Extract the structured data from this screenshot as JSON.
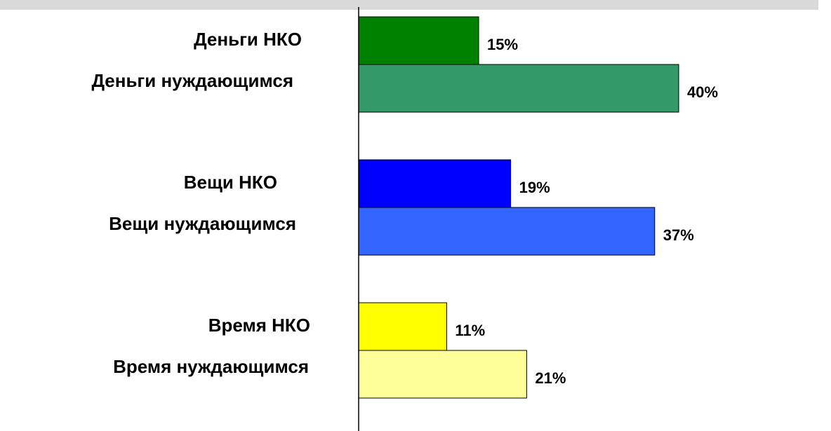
{
  "chart_data": {
    "type": "bar",
    "orientation": "horizontal",
    "categories": [
      "Деньги НКО",
      "Деньги нуждающимся",
      "Вещи НКО",
      "Вещи нуждающимся",
      "Время НКО",
      "Время нуждающимся"
    ],
    "values": [
      15,
      40,
      19,
      37,
      11,
      21
    ],
    "value_labels": [
      "15%",
      "40%",
      "19%",
      "37%",
      "11%",
      "21%"
    ],
    "colors": [
      "#008000",
      "#339966",
      "#0000ff",
      "#3366ff",
      "#ffff00",
      "#ffff99"
    ]
  }
}
